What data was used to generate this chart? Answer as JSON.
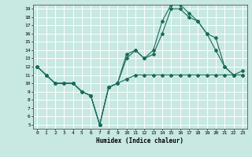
{
  "xlabel": "Humidex (Indice chaleur)",
  "bg_color": "#c8e8e2",
  "grid_color": "#ffffff",
  "line_color": "#1a6b5a",
  "xlim": [
    -0.5,
    23.5
  ],
  "ylim": [
    4.5,
    19.5
  ],
  "xticks": [
    0,
    1,
    2,
    3,
    4,
    5,
    6,
    7,
    8,
    9,
    10,
    11,
    12,
    13,
    14,
    15,
    16,
    17,
    18,
    19,
    20,
    21,
    22,
    23
  ],
  "yticks": [
    5,
    6,
    7,
    8,
    9,
    10,
    11,
    12,
    13,
    14,
    15,
    16,
    17,
    18,
    19
  ],
  "line1_x": [
    0,
    1,
    2,
    3,
    4,
    5,
    6,
    7,
    8,
    9,
    10,
    11,
    12,
    13,
    14,
    15,
    16,
    17,
    18,
    19,
    20,
    21,
    22,
    23
  ],
  "line1_y": [
    12,
    11,
    10,
    10,
    10,
    9,
    8.5,
    5,
    9.5,
    10,
    10.5,
    11,
    11,
    11,
    11,
    11,
    11,
    11,
    11,
    11,
    11,
    11,
    11,
    11
  ],
  "line2_x": [
    0,
    1,
    2,
    3,
    4,
    5,
    6,
    7,
    8,
    9,
    10,
    11,
    12,
    13,
    14,
    15,
    16,
    17,
    18,
    19,
    20,
    21,
    22,
    23
  ],
  "line2_y": [
    12,
    11,
    10,
    10,
    10,
    9,
    8.5,
    5,
    9.5,
    10,
    13,
    14,
    13,
    13.5,
    16,
    19,
    19,
    18,
    17.5,
    16,
    15.5,
    12,
    11,
    11
  ],
  "line3_x": [
    0,
    1,
    2,
    3,
    4,
    5,
    6,
    7,
    8,
    9,
    10,
    11,
    12,
    13,
    14,
    15,
    16,
    17,
    18,
    19,
    20,
    21,
    22,
    23
  ],
  "line3_y": [
    12,
    11,
    10,
    10,
    10,
    9,
    8.5,
    5,
    9.5,
    10,
    13.5,
    14,
    13,
    14,
    17.5,
    19.5,
    19.5,
    18.5,
    17.5,
    16,
    14,
    12,
    11,
    11.5
  ]
}
